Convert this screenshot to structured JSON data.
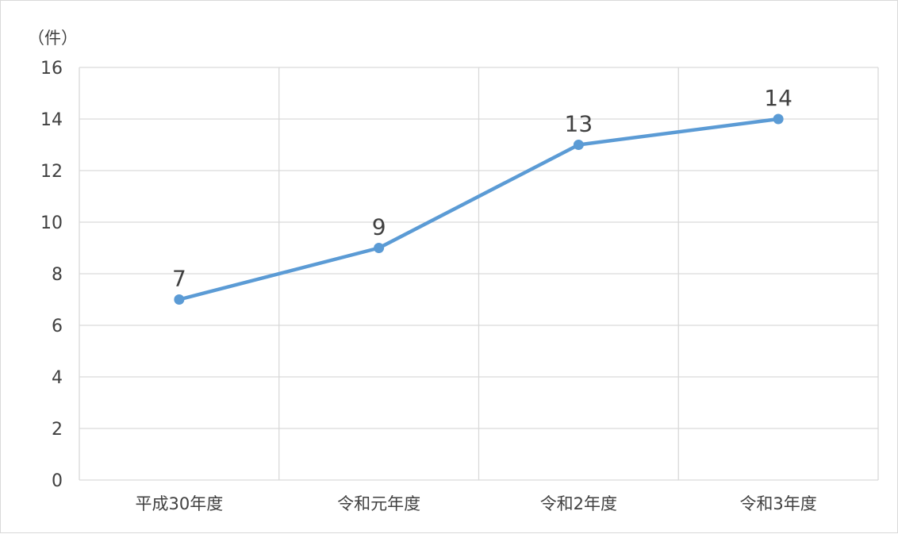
{
  "chart_data": {
    "type": "line",
    "unit_label": "（件）",
    "categories": [
      "平成30年度",
      "令和元年度",
      "令和2年度",
      "令和3年度"
    ],
    "series": [
      {
        "values": [
          7,
          9,
          13,
          14
        ],
        "color": "#5b9bd5"
      }
    ],
    "data_labels": [
      "7",
      "9",
      "13",
      "14"
    ],
    "ylim": [
      0,
      16
    ],
    "yticks": [
      0,
      2,
      4,
      6,
      8,
      10,
      12,
      14,
      16
    ],
    "grid": true,
    "legend": "none"
  }
}
